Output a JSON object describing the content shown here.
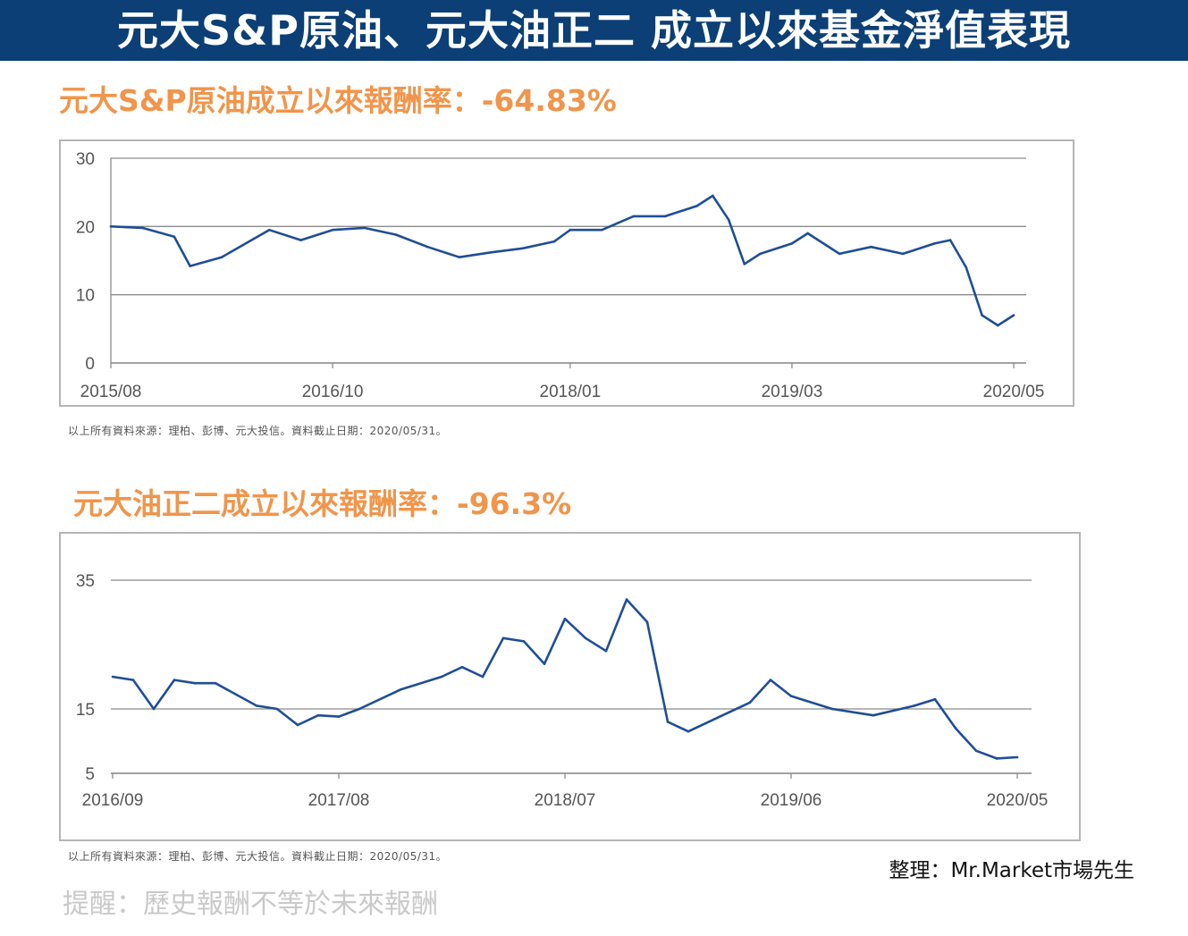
{
  "header": {
    "title": "元大S&P原油、元大油正二 成立以來基金淨值表現"
  },
  "charts": [
    {
      "subtitle": "元大S&P原油成立以來報酬率：-64.83%",
      "source": "以上所有資料來源：理柏、彭博、元大投信。資料截止日期：2020/05/31。"
    },
    {
      "subtitle": "元大油正二成立以來報酬率：-96.3%",
      "source": "以上所有資料來源：理柏、彭博、元大投信。資料截止日期：2020/05/31。"
    }
  ],
  "footer": {
    "credit": "整理：Mr.Market市場先生",
    "reminder": "提醒：歷史報酬不等於未來報酬"
  },
  "colors": {
    "banner": "#0b3f75",
    "subtitle": "#f0954b",
    "line": "#1f4e96",
    "grid": "#8c8c8c"
  },
  "chart_data": [
    {
      "type": "line",
      "ylim": [
        0,
        30
      ],
      "yticks": [
        0,
        10,
        20,
        30
      ],
      "xticks": [
        "2015/08",
        "2016/10",
        "2018/01",
        "2019/03",
        "2020/05"
      ],
      "series": [
        {
          "x": [
            "2015/08",
            "2015/10",
            "2015/12",
            "2016/01",
            "2016/03",
            "2016/06",
            "2016/08",
            "2016/10",
            "2016/12",
            "2017/02",
            "2017/04",
            "2017/06",
            "2017/08",
            "2017/10",
            "2017/12",
            "2018/01",
            "2018/03",
            "2018/05",
            "2018/07",
            "2018/09",
            "2018/10",
            "2018/11",
            "2018/12",
            "2019/01",
            "2019/03",
            "2019/04",
            "2019/06",
            "2019/08",
            "2019/10",
            "2019/12",
            "2020/01",
            "2020/02",
            "2020/03",
            "2020/04",
            "2020/05"
          ],
          "values": [
            20.0,
            19.8,
            18.5,
            14.2,
            15.5,
            19.5,
            18.0,
            19.5,
            19.8,
            18.8,
            17.0,
            15.5,
            16.2,
            16.8,
            17.8,
            19.5,
            19.5,
            21.5,
            21.5,
            23.0,
            24.5,
            21.0,
            14.5,
            16.0,
            17.5,
            19.0,
            16.0,
            17.0,
            16.0,
            17.5,
            18.0,
            14.0,
            7.0,
            5.5,
            7.0
          ]
        }
      ]
    },
    {
      "type": "line",
      "ylim": [
        5,
        35
      ],
      "yticks": [
        5,
        15,
        35
      ],
      "xticks": [
        "2016/09",
        "2017/08",
        "2018/07",
        "2019/06",
        "2020/05"
      ],
      "series": [
        {
          "x": [
            "2016/09",
            "2016/10",
            "2016/11",
            "2016/12",
            "2017/01",
            "2017/02",
            "2017/04",
            "2017/05",
            "2017/06",
            "2017/07",
            "2017/08",
            "2017/09",
            "2017/11",
            "2018/01",
            "2018/02",
            "2018/03",
            "2018/04",
            "2018/05",
            "2018/06",
            "2018/07",
            "2018/08",
            "2018/09",
            "2018/10",
            "2018/11",
            "2018/12",
            "2019/01",
            "2019/03",
            "2019/04",
            "2019/05",
            "2019/06",
            "2019/08",
            "2019/10",
            "2019/12",
            "2020/01",
            "2020/02",
            "2020/03",
            "2020/04",
            "2020/05"
          ],
          "values": [
            20.0,
            19.5,
            15.0,
            19.5,
            19.0,
            19.0,
            15.5,
            15.0,
            12.5,
            14.0,
            13.8,
            15.0,
            18.0,
            20.0,
            21.5,
            20.0,
            26.0,
            25.5,
            22.0,
            29.0,
            26.0,
            24.0,
            32.0,
            28.5,
            13.0,
            11.5,
            14.5,
            16.0,
            19.5,
            17.0,
            15.0,
            14.0,
            15.5,
            16.5,
            12.0,
            8.5,
            7.3,
            7.5
          ]
        }
      ]
    }
  ]
}
